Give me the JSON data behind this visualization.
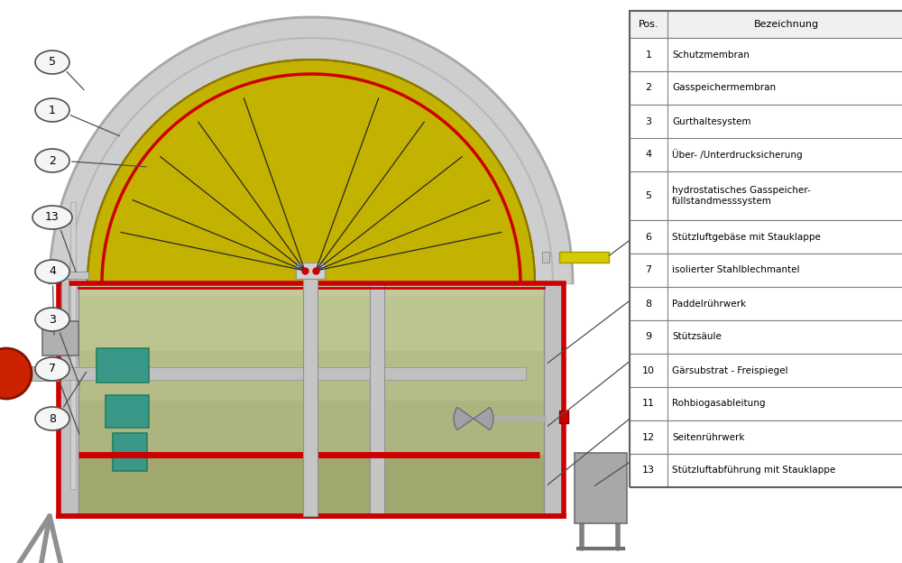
{
  "table_rows": [
    [
      "1",
      "Schutzmembran"
    ],
    [
      "2",
      "Gasspeichermembran"
    ],
    [
      "3",
      "Gurthaltesystem"
    ],
    [
      "4",
      "Über- /Unterdrucksicherung"
    ],
    [
      "5",
      "hydrostatisches Gasspeicher-\nfüllstandmesssystem"
    ],
    [
      "6",
      "Stützluftgebäse mit Stauklappe"
    ],
    [
      "7",
      "isolierter Stahlblechmantel"
    ],
    [
      "8",
      "Paddelrührwerk"
    ],
    [
      "9",
      "Stützsäule"
    ],
    [
      "10",
      "Gärsubstrat - Freispiegel"
    ],
    [
      "11",
      "Rohbiogasableitung"
    ],
    [
      "12",
      "Seitenrührwerk"
    ],
    [
      "13",
      "Stützluftabführung mit Stauklappe"
    ]
  ],
  "colors": {
    "outer_dome": "#d8d8d8",
    "inner_dome_yellow": "#c8b400",
    "tank_body_light": "#c8c8a0",
    "liquid_top": "#c0c8a0",
    "liquid_mid": "#b0ba88",
    "liquid_low": "#a8b280",
    "liquid_bottom": "#98a870",
    "floor_green": "#8a9860",
    "red_frame": "#cc0000",
    "wall_gray": "#b8b8b8",
    "wall_dark": "#909090",
    "motor_red": "#cc2200",
    "teal": "#40a090",
    "cable_dark": "#282828",
    "label_bg": "#f8f8f8",
    "label_edge": "#505050",
    "line_col": "#505050",
    "table_bg": "#ffffff",
    "table_head_bg": "#f0f0f0",
    "table_border": "#808080",
    "yellow_pipe": "#d4cc00",
    "pipe_gray": "#b0b0b0"
  }
}
